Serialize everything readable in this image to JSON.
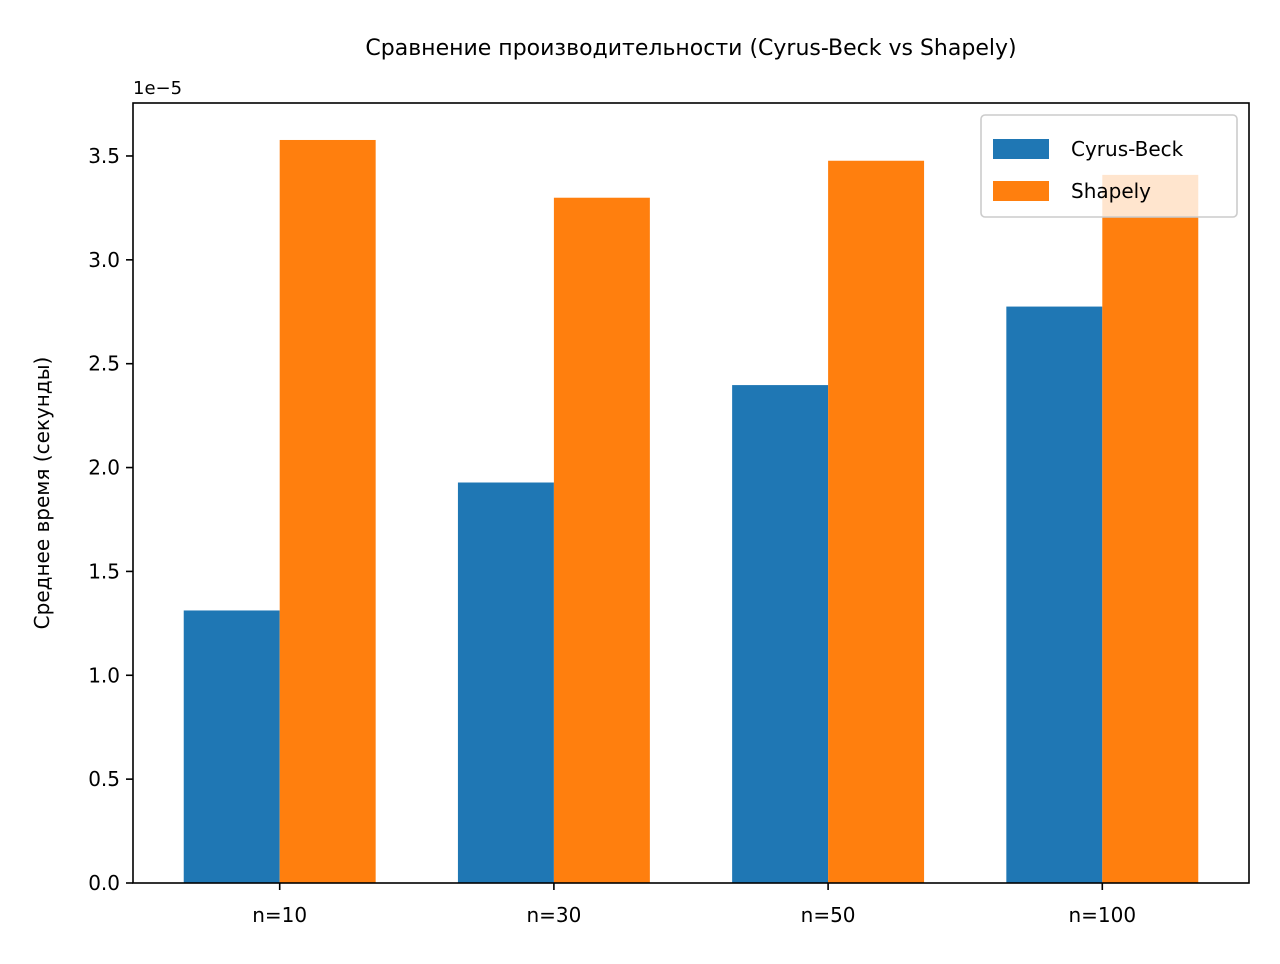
{
  "chart_data": {
    "type": "bar",
    "title": "Сравнение производительности (Cyrus-Beck vs Shapely)",
    "xlabel": "",
    "ylabel": "Среднее время (секунды)",
    "offset_label": "1e−5",
    "categories": [
      "n=10",
      "n=30",
      "n=50",
      "n=100"
    ],
    "series": [
      {
        "name": "Cyrus-Beck",
        "color": "#1f77b4",
        "values": [
          1.312e-05,
          1.928e-05,
          2.397e-05,
          2.775e-05
        ]
      },
      {
        "name": "Shapely",
        "color": "#ff7f0e",
        "values": [
          3.577e-05,
          3.299e-05,
          3.477e-05,
          3.409e-05
        ]
      }
    ],
    "ylim": [
      0,
      3.755e-05
    ],
    "yticks": [
      0,
      5e-06,
      1e-05,
      1.5e-05,
      2e-05,
      2.5e-05,
      3e-05,
      3.5e-05
    ],
    "ytick_labels": [
      "0.0",
      "0.5",
      "1.0",
      "1.5",
      "2.0",
      "2.5",
      "3.0",
      "3.5"
    ],
    "grid": false,
    "legend_position": "top-right"
  }
}
